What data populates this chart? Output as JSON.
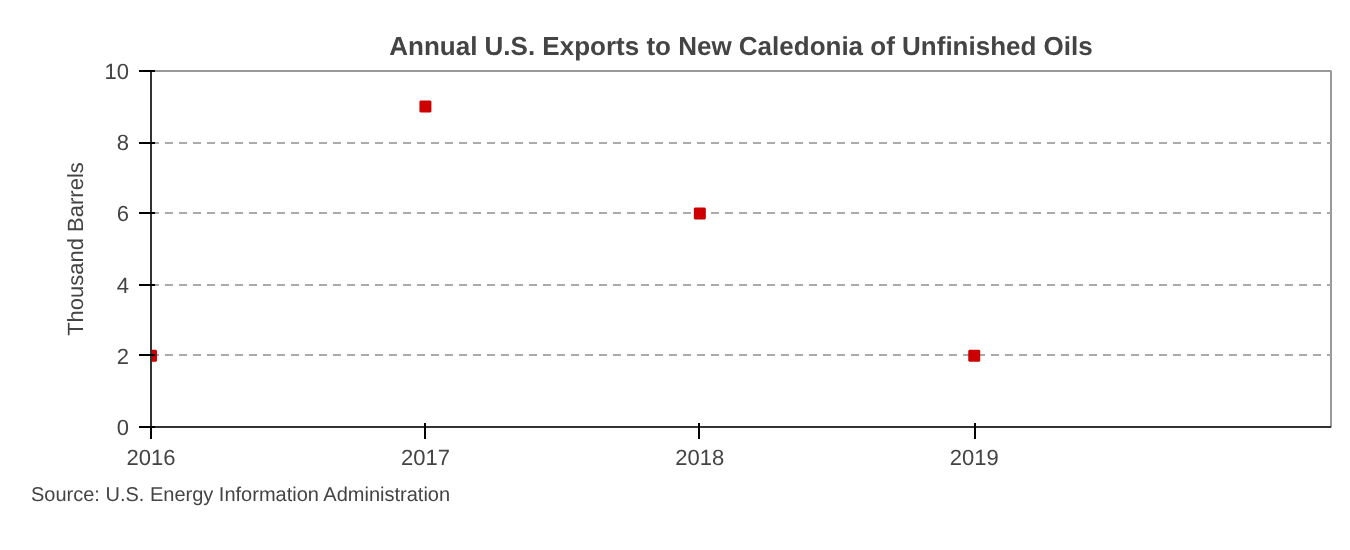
{
  "chart_data": {
    "type": "scatter",
    "title": "Annual U.S. Exports to New Caledonia of Unfinished Oils",
    "ylabel": "Thousand Barrels",
    "x": [
      2016,
      2017,
      2018,
      2019
    ],
    "series": [
      {
        "color": "#cc0000",
        "values": [
          2,
          9,
          6,
          2
        ]
      }
    ],
    "marker": "square",
    "grid": true,
    "xlim": [
      2016,
      2020.3
    ],
    "xticks": [
      2016,
      2017,
      2018,
      2019
    ],
    "ylim": [
      0,
      10
    ],
    "yticks": [
      0,
      2,
      4,
      6,
      8,
      10
    ],
    "annotations": [
      "Source: U.S. Energy Information Administration"
    ]
  }
}
